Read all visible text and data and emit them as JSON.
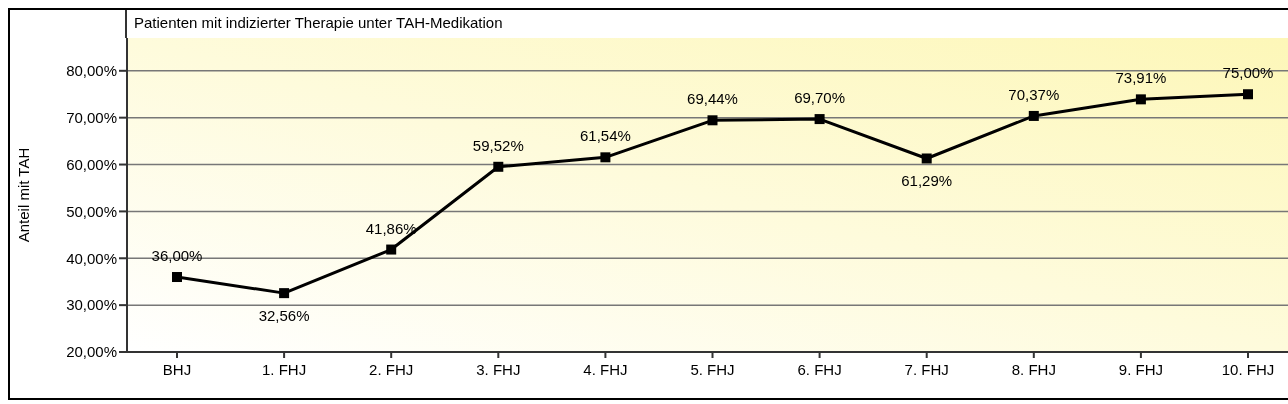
{
  "chart_data": {
    "type": "line",
    "title": "Patienten mit indizierter Therapie unter TAH-Medikation",
    "ylabel": "Anteil mit TAH",
    "categories": [
      "BHJ",
      "1. FHJ",
      "2. FHJ",
      "3. FHJ",
      "4. FHJ",
      "5. FHJ",
      "6. FHJ",
      "7. FHJ",
      "8. FHJ",
      "9. FHJ",
      "10. FHJ"
    ],
    "series": [
      {
        "color": "#000000",
        "values": [
          36.0,
          32.56,
          41.86,
          59.52,
          61.54,
          69.44,
          69.7,
          61.29,
          70.37,
          73.91,
          75.0
        ],
        "value_labels": [
          "36,00%",
          "32,56%",
          "41,86%",
          "59,52%",
          "61,54%",
          "69,44%",
          "69,70%",
          "61,29%",
          "70,37%",
          "73,91%",
          "75,00%"
        ]
      }
    ],
    "ylim": [
      20,
      87
    ],
    "yticks": [
      {
        "value": 20,
        "label": "20,00%"
      },
      {
        "value": 30,
        "label": "30,00%"
      },
      {
        "value": 40,
        "label": "40,00%"
      },
      {
        "value": 50,
        "label": "50,00%"
      },
      {
        "value": 60,
        "label": "60,00%"
      },
      {
        "value": 70,
        "label": "70,00%"
      },
      {
        "value": 80,
        "label": "80,00%"
      }
    ],
    "grid": "y",
    "marker": "square",
    "line_style": "solid",
    "legend": false
  }
}
